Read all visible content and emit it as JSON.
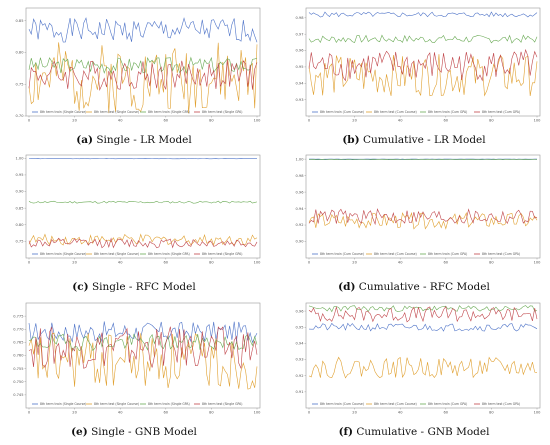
{
  "chart_data": [
    {
      "type": "line",
      "caption_letter": "(a)",
      "caption_text": "Single - LR Model",
      "x": [
        0,
        100
      ],
      "xticks": [
        "0",
        "20",
        "40",
        "60",
        "80",
        "100"
      ],
      "ylim": [
        0.7,
        0.87
      ],
      "yticks": [
        "0.70",
        "0.75",
        "0.80",
        "0.85"
      ],
      "series": [
        {
          "name": "8th term train (Single Course)",
          "color": "#4f74c8",
          "mean": 0.835,
          "amp": 0.012,
          "seed": 1
        },
        {
          "name": "8th term test (Single Course)",
          "color": "#e0a030",
          "mean": 0.76,
          "amp": 0.035,
          "seed": 2
        },
        {
          "name": "8th term train (Single GPA)",
          "color": "#6aaa55",
          "mean": 0.78,
          "amp": 0.008,
          "seed": 3
        },
        {
          "name": "8th term test (Single GPA)",
          "color": "#c0454a",
          "mean": 0.765,
          "amp": 0.015,
          "seed": 4
        }
      ]
    },
    {
      "type": "line",
      "caption_letter": "(b)",
      "caption_text": "Cumulative - LR Model",
      "x": [
        0,
        100
      ],
      "xticks": [
        "0",
        "20",
        "40",
        "60",
        "80",
        "100"
      ],
      "ylim": [
        0.92,
        0.986
      ],
      "yticks": [
        "0.93",
        "0.94",
        "0.95",
        "0.96",
        "0.97",
        "0.98"
      ],
      "series": [
        {
          "name": "8th term train (Cum Course)",
          "color": "#4f74c8",
          "mean": 0.982,
          "amp": 0.001,
          "seed": 5
        },
        {
          "name": "8th term test (Cum Course)",
          "color": "#e0a030",
          "mean": 0.945,
          "amp": 0.008,
          "seed": 6
        },
        {
          "name": "8th term train (Cum GPA)",
          "color": "#6aaa55",
          "mean": 0.967,
          "amp": 0.0015,
          "seed": 7
        },
        {
          "name": "8th term test (Cum GPA)",
          "color": "#c0454a",
          "mean": 0.951,
          "amp": 0.006,
          "seed": 8
        }
      ]
    },
    {
      "type": "line",
      "caption_letter": "(c)",
      "caption_text": "Single - RFC Model",
      "x": [
        0,
        100
      ],
      "xticks": [
        "0",
        "20",
        "40",
        "60",
        "80",
        "100"
      ],
      "ylim": [
        0.7,
        1.01
      ],
      "yticks": [
        "0.75",
        "0.80",
        "0.85",
        "0.90",
        "0.95",
        "1.00"
      ],
      "series": [
        {
          "name": "8th term train (Single Course)",
          "color": "#4f74c8",
          "mean": 0.999,
          "amp": 0.0003,
          "seed": 9
        },
        {
          "name": "8th term test (Single Course)",
          "color": "#e0a030",
          "mean": 0.755,
          "amp": 0.01,
          "seed": 10
        },
        {
          "name": "8th term train (Single GPA)",
          "color": "#6aaa55",
          "mean": 0.868,
          "amp": 0.002,
          "seed": 11
        },
        {
          "name": "8th term test (Single GPA)",
          "color": "#c0454a",
          "mean": 0.745,
          "amp": 0.009,
          "seed": 12
        }
      ]
    },
    {
      "type": "line",
      "caption_letter": "(d)",
      "caption_text": "Cumulative - RFC Model",
      "x": [
        0,
        100
      ],
      "xticks": [
        "0",
        "20",
        "40",
        "60",
        "80",
        "100"
      ],
      "ylim": [
        0.88,
        1.005
      ],
      "yticks": [
        "0.90",
        "0.92",
        "0.94",
        "0.96",
        "0.98",
        "1.00"
      ],
      "series": [
        {
          "name": "8th term train (Cum Course)",
          "color": "#4f74c8",
          "mean": 1.0,
          "amp": 0.0001,
          "seed": 13
        },
        {
          "name": "8th term test (Cum Course)",
          "color": "#e0a030",
          "mean": 0.925,
          "amp": 0.006,
          "seed": 14
        },
        {
          "name": "8th term train (Cum GPA)",
          "color": "#6aaa55",
          "mean": 0.9995,
          "amp": 0.0001,
          "seed": 15
        },
        {
          "name": "8th term test (Cum GPA)",
          "color": "#c0454a",
          "mean": 0.93,
          "amp": 0.006,
          "seed": 16
        }
      ]
    },
    {
      "type": "line",
      "caption_letter": "(e)",
      "caption_text": "Single - GNB Model",
      "x": [
        0,
        100
      ],
      "xticks": [
        "0",
        "20",
        "40",
        "60",
        "80",
        "100"
      ],
      "ylim": [
        0.74,
        0.78
      ],
      "yticks": [
        "0.745",
        "0.750",
        "0.755",
        "0.760",
        "0.765",
        "0.770",
        "0.775"
      ],
      "series": [
        {
          "name": "8th term train (Single Course)",
          "color": "#4f74c8",
          "mean": 0.769,
          "amp": 0.0025,
          "seed": 17
        },
        {
          "name": "8th term test (Single Course)",
          "color": "#e0a030",
          "mean": 0.758,
          "amp": 0.007,
          "seed": 18
        },
        {
          "name": "8th term train (Single GPA)",
          "color": "#6aaa55",
          "mean": 0.765,
          "amp": 0.002,
          "seed": 19
        },
        {
          "name": "8th term test (Single GPA)",
          "color": "#c0454a",
          "mean": 0.763,
          "amp": 0.005,
          "seed": 20
        }
      ]
    },
    {
      "type": "line",
      "caption_letter": "(f)",
      "caption_text": "Cumulative - GNB Model",
      "x": [
        0,
        100
      ],
      "xticks": [
        "0",
        "20",
        "40",
        "60",
        "80",
        "100"
      ],
      "ylim": [
        0.9,
        0.965
      ],
      "yticks": [
        "0.91",
        "0.92",
        "0.93",
        "0.94",
        "0.95",
        "0.96"
      ],
      "series": [
        {
          "name": "8th term train (Cum Course)",
          "color": "#4f74c8",
          "mean": 0.95,
          "amp": 0.0015,
          "seed": 21
        },
        {
          "name": "8th term test (Cum Course)",
          "color": "#e0a030",
          "mean": 0.925,
          "amp": 0.004,
          "seed": 22
        },
        {
          "name": "8th term train (Cum GPA)",
          "color": "#6aaa55",
          "mean": 0.9615,
          "amp": 0.0012,
          "seed": 23
        },
        {
          "name": "8th term test (Cum GPA)",
          "color": "#c0454a",
          "mean": 0.958,
          "amp": 0.003,
          "seed": 24
        }
      ]
    }
  ]
}
